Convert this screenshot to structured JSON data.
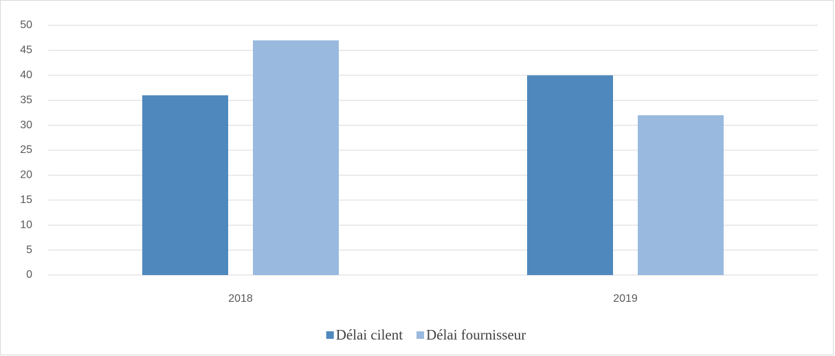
{
  "chart_data": {
    "type": "bar",
    "categories": [
      "2018",
      "2019"
    ],
    "series": [
      {
        "name": "Délai cilent",
        "color": "#4f88bd",
        "values": [
          36,
          40
        ]
      },
      {
        "name": "Délai fournisseur",
        "color": "#99b9df",
        "values": [
          47,
          32
        ]
      }
    ],
    "ylim": [
      0,
      50
    ],
    "yticks": [
      0,
      5,
      10,
      15,
      20,
      25,
      30,
      35,
      40,
      45,
      50
    ],
    "grid": true,
    "legend": "bottom"
  }
}
